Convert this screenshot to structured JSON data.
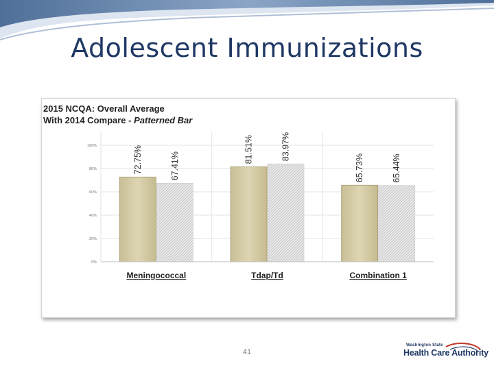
{
  "slide": {
    "title": "Adolescent Immunizations",
    "page_number": "41"
  },
  "logo": {
    "small_text": "Washington State",
    "main_text": "Health Care Authority"
  },
  "colors": {
    "title": "#1f3864",
    "swoosh_dark": "#5a7da6",
    "swoosh_light": "#c5d3e6",
    "bar_2015": "#d5cca7",
    "bar_2015_edge": "#a79a6e",
    "bar_2014": "#e9e9e9",
    "bar_2014_hatch": "#c8c8c8",
    "logo_arc": "#c0392b"
  },
  "chart_data": {
    "type": "bar",
    "title_line1": "2015 NCQA: Overall Average",
    "title_line2_plain": "With 2014 Compare - ",
    "title_line2_italic": "Patterned Bar",
    "categories": [
      "Meningococcal",
      "Tdap/Td",
      "Combination 1"
    ],
    "series": [
      {
        "values": [
          72.75,
          81.51,
          65.73
        ],
        "labels": [
          "72.75%",
          "81.51%",
          "65.73%"
        ],
        "pattern": "solid"
      },
      {
        "values": [
          67.41,
          83.97,
          65.44
        ],
        "labels": [
          "67.41%",
          "83.97%",
          "65.44%"
        ],
        "pattern": "hatched"
      }
    ],
    "y_ticks": [
      {
        "value": 100,
        "label": "100%"
      },
      {
        "value": 80,
        "label": "80%"
      },
      {
        "value": 60,
        "label": "60%"
      },
      {
        "value": 40,
        "label": "40%"
      },
      {
        "value": 20,
        "label": "20%"
      },
      {
        "value": 0,
        "label": "0%"
      }
    ],
    "ylim": [
      0,
      100
    ],
    "grid": true
  }
}
